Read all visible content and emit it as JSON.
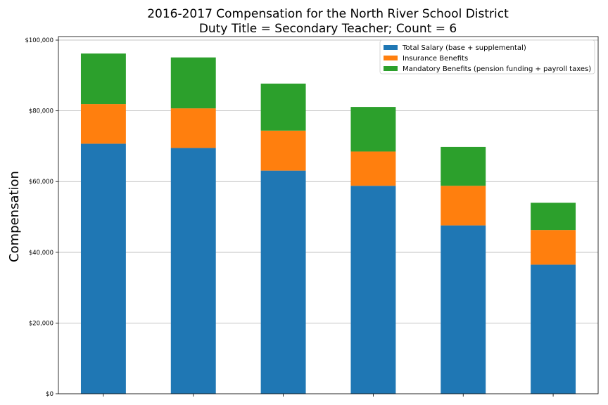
{
  "chart_data": {
    "type": "bar",
    "stacked": true,
    "title": "2016-2017 Compensation for the North River School District",
    "subtitle": "Duty Title = Secondary Teacher; Count = 6",
    "xlabel": "",
    "ylabel": "Compensation",
    "ylim": [
      0,
      101000
    ],
    "yticks": [
      0,
      20000,
      40000,
      60000,
      80000,
      100000
    ],
    "ytick_labels": [
      "$0",
      "$20,000",
      "$40,000",
      "$60,000",
      "$80,000",
      "$100,000"
    ],
    "categories": [
      "",
      "",
      "",
      "",
      "",
      ""
    ],
    "grid": "y",
    "legend_position": "top-right",
    "series": [
      {
        "name": "Total Salary (base + supplemental)",
        "color": "#1f77b4",
        "values": [
          70700,
          69500,
          63100,
          58800,
          47600,
          36500
        ]
      },
      {
        "name": "Insurance Benefits",
        "color": "#ff7f0e",
        "values": [
          11200,
          11200,
          11300,
          9700,
          11200,
          9800
        ]
      },
      {
        "name": "Mandatory Benefits (pension funding + payroll taxes)",
        "color": "#2ca02c",
        "values": [
          14300,
          14400,
          13300,
          12600,
          11000,
          7700
        ]
      }
    ]
  }
}
